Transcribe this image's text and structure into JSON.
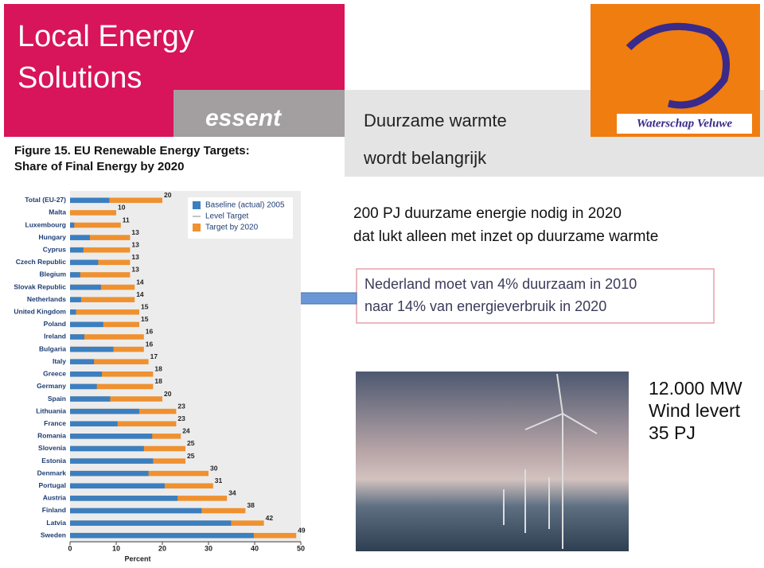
{
  "header": {
    "title_lines": [
      "Local Energy",
      "Solutions"
    ],
    "essent_logo": "essent",
    "subtitle_lines": [
      "Duurzame warmte",
      "wordt belangrijk"
    ],
    "waterschap_logo": "Waterschap Veluwe"
  },
  "text_lines": [
    "200 PJ duurzame energie nodig in 2020",
    "dat lukt alleen met inzet op duurzame warmte"
  ],
  "callout_lines": [
    "Nederland moet van 4% duurzaam in 2010",
    "naar 14% van energieverbruik in 2020"
  ],
  "wind_lines": [
    "12.000 MW",
    "Wind levert",
    "35 PJ"
  ],
  "chart_data": {
    "type": "bar",
    "orientation": "horizontal",
    "title_lines": [
      "Figure 15. EU Renewable Energy Targets:",
      "Share of Final Energy by 2020"
    ],
    "categories": [
      "Total (EU-27)",
      "Malta",
      "Luxembourg",
      "Hungary",
      "Cyprus",
      "Czech Republic",
      "Blegium",
      "Slovak Republic",
      "Netherlands",
      "United Kingdom",
      "Poland",
      "Ireland",
      "Bulgaria",
      "Italy",
      "Greece",
      "Germany",
      "Spain",
      "Lithuania",
      "France",
      "Romania",
      "Slovenia",
      "Estonia",
      "Denmark",
      "Portugal",
      "Austria",
      "Finland",
      "Latvia",
      "Sweden"
    ],
    "series": [
      {
        "name": "Baseline (actual) 2005",
        "color": "#3b7fc0",
        "values": [
          8.5,
          0,
          0.9,
          4.3,
          2.9,
          6.1,
          2.2,
          6.7,
          2.4,
          1.3,
          7.2,
          3.1,
          9.4,
          5.2,
          6.9,
          5.8,
          8.7,
          15,
          10.3,
          17.8,
          16,
          18,
          17,
          20.5,
          23.3,
          28.5,
          34.9,
          39.8
        ]
      },
      {
        "name": "Target by 2020",
        "color": "#ef9130",
        "values": [
          20,
          10,
          11,
          13,
          13,
          13,
          13,
          14,
          14,
          15,
          15,
          16,
          16,
          17,
          18,
          18,
          20,
          23,
          23,
          24,
          25,
          25,
          30,
          31,
          34,
          38,
          42,
          49
        ]
      }
    ],
    "legend_extra": "Level Target",
    "xlim": [
      0,
      50
    ],
    "xticks": [
      0,
      10,
      20,
      30,
      40,
      50
    ],
    "xlabel": "Percent"
  }
}
